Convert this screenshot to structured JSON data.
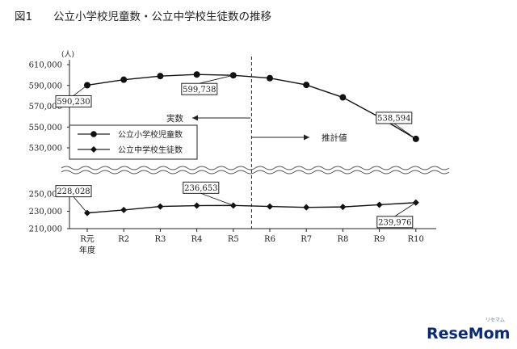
{
  "header": {
    "figure_number": "図1",
    "title": "公立小学校児童数・公立中学校生徒数の推移"
  },
  "logo": {
    "text": "ReseMom",
    "small": "リセマム"
  },
  "chart_data": {
    "type": "line",
    "unit_label": "(人)",
    "categories": [
      "R元",
      "R2",
      "R3",
      "R4",
      "R5",
      "R6",
      "R7",
      "R8",
      "R9",
      "R10"
    ],
    "category_sublabel": "年度",
    "upper_axis": {
      "ylim": [
        530000,
        610000
      ],
      "ticks": [
        "610,000",
        "590,000",
        "570,000",
        "550,000",
        "530,000"
      ]
    },
    "lower_axis": {
      "ylim": [
        210000,
        250000
      ],
      "ticks": [
        "250,000",
        "230,000",
        "210,000"
      ]
    },
    "axis_break": true,
    "series": [
      {
        "name": "公立小学校児童数",
        "marker": "circle",
        "axis": "upper",
        "values": [
          590230,
          595500,
          599000,
          600500,
          599738,
          597000,
          590500,
          578500,
          559500,
          538594
        ]
      },
      {
        "name": "公立中学校生徒数",
        "marker": "diamond",
        "axis": "lower",
        "values": [
          228028,
          231500,
          235500,
          236500,
          236653,
          235500,
          234500,
          235000,
          237500,
          239976
        ]
      }
    ],
    "data_labels": [
      {
        "text": "590,230",
        "series": 0,
        "index": 0
      },
      {
        "text": "599,738",
        "series": 0,
        "index": 4
      },
      {
        "text": "538,594",
        "series": 0,
        "index": 9
      },
      {
        "text": "228,028",
        "series": 1,
        "index": 0
      },
      {
        "text": "236,653",
        "series": 1,
        "index": 4
      },
      {
        "text": "239,976",
        "series": 1,
        "index": 9
      }
    ],
    "annotations": {
      "actual": "実数",
      "projected": "推計値"
    },
    "divider_between": [
      "R5",
      "R6"
    ],
    "legend_position": "middle-left",
    "grid": false
  }
}
